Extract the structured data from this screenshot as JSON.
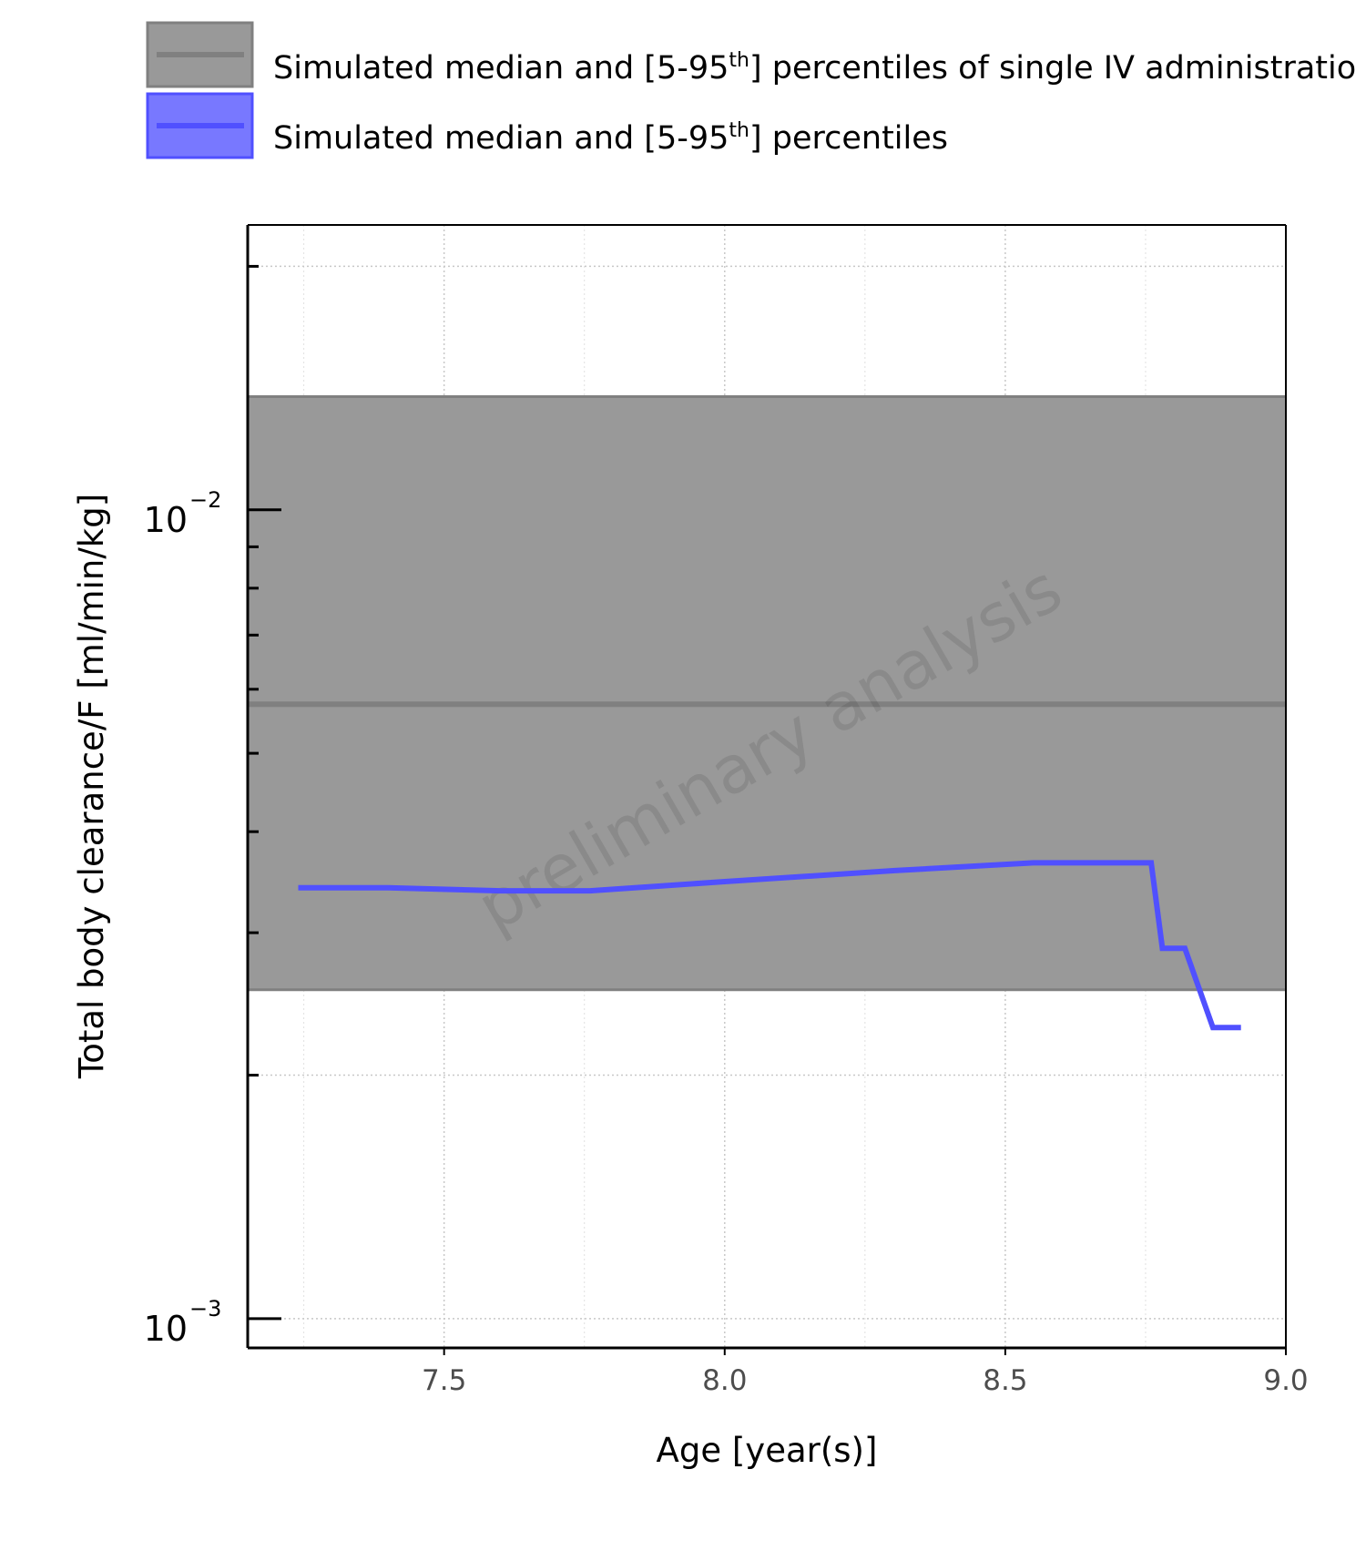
{
  "chart_data": {
    "type": "area",
    "xlabel": "Age [year(s)]",
    "ylabel": "Total body clearance/F [ml/min/kg]",
    "x_ticks": [
      "7.5",
      "8.0",
      "8.5",
      "9.0"
    ],
    "y_tick_labels": [
      {
        "value": 0.01,
        "base": "10",
        "exp": "−2"
      },
      {
        "value": 0.001,
        "base": "10",
        "exp": "−3"
      }
    ],
    "xlim": [
      7.15,
      9.0
    ],
    "ylim": [
      0.00092,
      0.0225
    ],
    "y_scale": "log",
    "grid": true,
    "legend_position": "top",
    "watermark": "preliminary analysis",
    "series": [
      {
        "name": "Simulated median and [5-95th] percentiles of single IV administratio",
        "name_parts": [
          "Simulated median and [5-95",
          "th",
          "] percentiles of single IV administratio"
        ],
        "kind": "ribbon",
        "color": "#808080",
        "fill": "#999999",
        "x": [
          7.15,
          9.0
        ],
        "median": [
          0.00575,
          0.00575
        ],
        "lower": [
          0.00255,
          0.00255
        ],
        "upper": [
          0.0138,
          0.0138
        ]
      },
      {
        "name": "Simulated median and [5-95th] percentiles",
        "name_parts": [
          "Simulated median and [5-95",
          "th",
          "] percentiles"
        ],
        "kind": "line",
        "color": "#5050ff",
        "x": [
          7.24,
          7.4,
          7.6,
          7.76,
          8.0,
          8.3,
          8.55,
          8.76,
          8.78,
          8.82,
          8.87,
          8.92
        ],
        "y": [
          0.00341,
          0.00341,
          0.00338,
          0.00338,
          0.00347,
          0.00358,
          0.00366,
          0.00366,
          0.00287,
          0.00287,
          0.00229,
          0.00229
        ]
      }
    ]
  }
}
